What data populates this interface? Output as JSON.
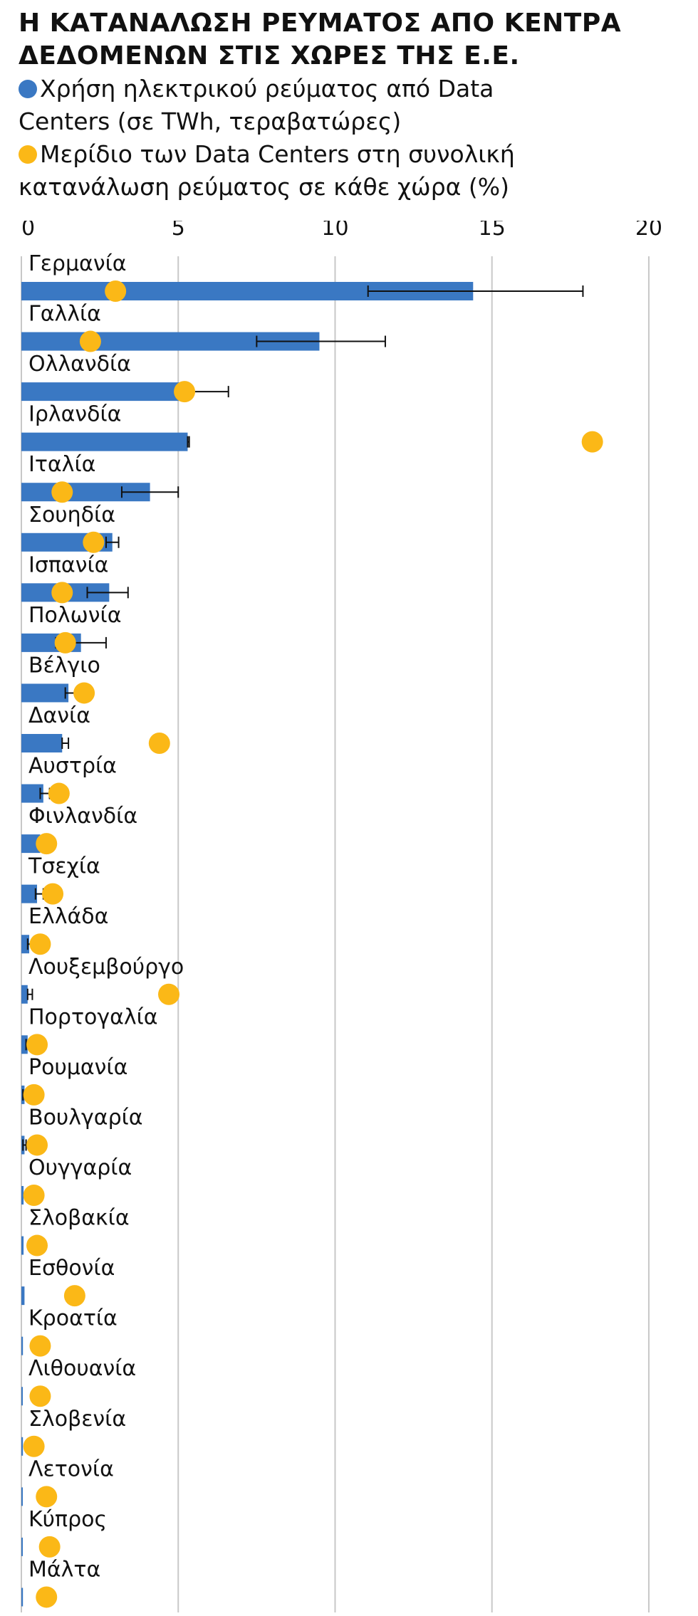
{
  "chart_data": {
    "type": "bar",
    "title": "Η ΚΑΤΑΝΑΛΩΣΗ ΡΕΥΜΑΤΟΣ ΑΠΟ ΚΕΝΤΡΑ ΔΕΔΟΜΕΝΩΝ ΣΤΙΣ ΧΩΡΕΣ ΤΗΣ Ε.Ε.",
    "categories": [
      "Γερμανία",
      "Γαλλία",
      "Ολλανδία",
      "Ιρλανδία",
      "Ιταλία",
      "Σουηδία",
      "Ισπανία",
      "Πολωνία",
      "Βέλγιο",
      "Δανία",
      "Αυστρία",
      "Φινλανδία",
      "Τσεχία",
      "Ελλάδα",
      "Λουξεμβούργο",
      "Πορτογαλία",
      "Ρουμανία",
      "Βουλγαρία",
      "Ουγγαρία",
      "Σλοβακία",
      "Εσθονία",
      "Κροατία",
      "Λιθουανία",
      "Σλοβενία",
      "Λετονία",
      "Κύπρος",
      "Μάλτα"
    ],
    "series": [
      {
        "name": "Χρήση ηλεκτρικού ρεύματος από Data Centers (σε TWh, τεραβατώρες)",
        "color": "#3a78c3",
        "values": [
          14.4,
          9.5,
          5.1,
          5.3,
          4.1,
          2.9,
          2.8,
          1.9,
          1.5,
          1.3,
          0.7,
          0.6,
          0.5,
          0.25,
          0.2,
          0.2,
          0.1,
          0.1,
          0.07,
          0.07,
          0.1,
          0.05,
          0.02,
          0.05,
          0.02,
          0.02,
          0.05
        ],
        "error_low": [
          11.05,
          7.5,
          5.2,
          5.3,
          3.2,
          2.7,
          2.1,
          1.1,
          1.4,
          1.3,
          0.6,
          0.55,
          0.45,
          0.2,
          0.2,
          0.15,
          0.05,
          0.05,
          null,
          null,
          null,
          null,
          null,
          null,
          null,
          null,
          null
        ],
        "error_high": [
          17.9,
          11.6,
          6.6,
          5.35,
          5.0,
          3.1,
          3.4,
          2.7,
          1.8,
          1.5,
          0.9,
          0.65,
          0.7,
          0.35,
          0.35,
          0.25,
          0.15,
          0.15,
          null,
          null,
          null,
          null,
          null,
          null,
          null,
          null,
          null
        ]
      },
      {
        "name": "Μερίδιο των Data Centers στη συνολική κατανάλωση ρεύματος σε κάθε χώρα (%)",
        "color": "#fbb817",
        "values": [
          3.0,
          2.2,
          5.2,
          18.2,
          1.3,
          2.3,
          1.3,
          1.4,
          2.0,
          4.4,
          1.2,
          0.8,
          1.0,
          0.6,
          4.7,
          0.5,
          0.4,
          0.5,
          0.4,
          0.5,
          1.7,
          0.6,
          0.6,
          0.4,
          0.8,
          0.9,
          0.8
        ]
      }
    ],
    "xlim": [
      0,
      21
    ],
    "xticks": [
      0,
      5,
      10,
      15,
      20
    ],
    "grid": true
  }
}
